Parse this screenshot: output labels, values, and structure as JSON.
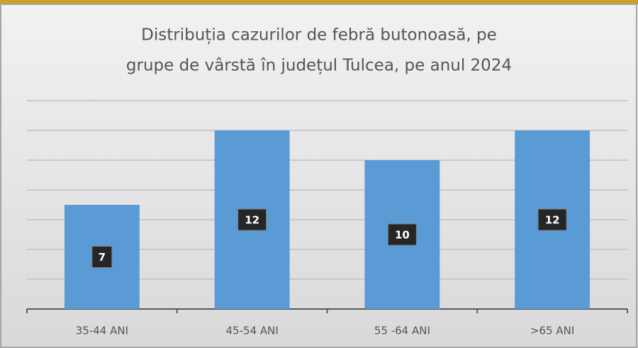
{
  "chart_data": {
    "type": "bar",
    "title": [
      "Distribuția cazurilor de febră butonoasă, pe",
      "grupe de vârstă în județul Tulcea, pe anul 2024"
    ],
    "categories": [
      "35-44 ANI",
      "45-54 ANI",
      "55 -64 ANI",
      ">65 ANI"
    ],
    "values": [
      7,
      12,
      10,
      12
    ],
    "color": "#5b9bd5",
    "ylim": [
      0,
      14
    ],
    "yticks": [
      0,
      2,
      4,
      6,
      8,
      10,
      12,
      14
    ],
    "grid": true
  }
}
